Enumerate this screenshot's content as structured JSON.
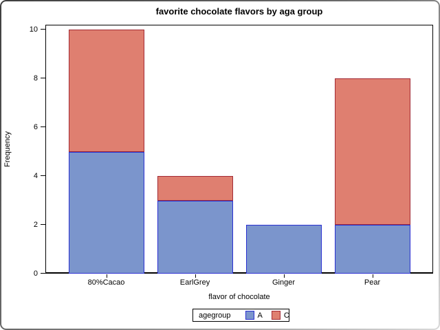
{
  "frame": {
    "background": "#ffffff",
    "border_dark": "#3f3f3f",
    "border_light": "#d9d9d9"
  },
  "chart_data": {
    "type": "bar",
    "stacked": true,
    "title": "favorite chocolate flavors by aga group",
    "xlabel": "flavor of chocolate",
    "ylabel": "Frequency",
    "categories": [
      "80%Cacao",
      "EarlGrey",
      "Ginger",
      "Pear"
    ],
    "series": [
      {
        "name": "A",
        "values": [
          5,
          3,
          2,
          2
        ],
        "fill": "#7B95CC",
        "stroke": "#2A2FD1"
      },
      {
        "name": "C",
        "values": [
          5,
          1,
          0,
          6
        ],
        "fill": "#DF7F70",
        "stroke": "#A22A35"
      }
    ],
    "totals": [
      10,
      4,
      2,
      8
    ],
    "yticks": [
      0,
      2,
      4,
      6,
      8,
      10
    ],
    "ylim": [
      0,
      10.2
    ],
    "grid": false,
    "axis_color": "#000000",
    "text_color": "#000000",
    "legend": {
      "title": "agegroup",
      "position": "bottom",
      "entries": [
        "A",
        "C"
      ]
    }
  }
}
